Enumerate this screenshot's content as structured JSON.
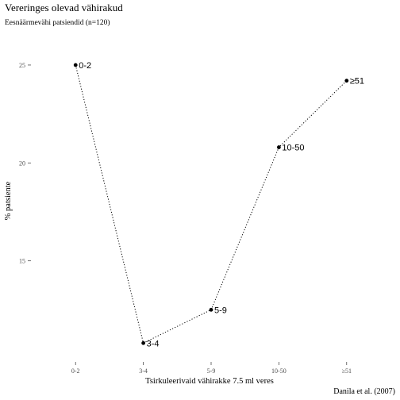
{
  "chart_data": {
    "type": "line",
    "title": "Vereringes olevad vähirakud",
    "subtitle": "Eesnäärmevähi patsiendid (n=120)",
    "xlabel": "Tsirkuleerivaid vähirakke 7.5 ml veres",
    "ylabel": "% patsiente",
    "caption": "Danila et al. (2007)",
    "categories": [
      "0-2",
      "3-4",
      "5-9",
      "10-50",
      "≥51"
    ],
    "series": [
      {
        "values": [
          25.0,
          10.8,
          12.5,
          20.8,
          24.2
        ],
        "point_labels": [
          "0-2",
          "3-4",
          "5-9",
          "10-50",
          "≥51"
        ]
      }
    ],
    "ylim": [
      10,
      26.7
    ],
    "yticks": [
      15,
      20,
      25
    ],
    "grid": false,
    "legend": "none",
    "line_style": "dotted",
    "colors": {
      "line": "#000000",
      "point": "#000000",
      "text": "#000000",
      "axis_text": "#4d4d4d"
    }
  }
}
